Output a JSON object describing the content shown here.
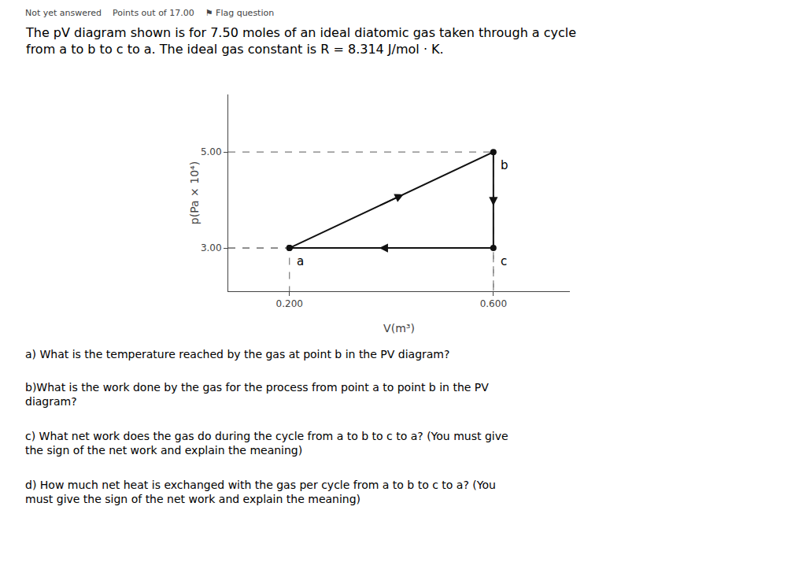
{
  "chart_data": {
    "type": "line",
    "subtitle": "Not yet answered    Points out of 17.00    ⚑ Flag question",
    "title": "The pV diagram shown is for 7.50 moles of an ideal diatomic gas taken through a cycle\nfrom a to b to c to a. The ideal gas constant is R = 8.314 J/mol · K.",
    "xlabel": "V(m³)",
    "ylabel": "p(Pa × 10⁴)",
    "x": [
      0.2,
      0.6,
      0.6,
      0.2
    ],
    "values": [
      3.0,
      5.0,
      3.0,
      3.0
    ],
    "color": "#111111",
    "marker": "circle",
    "line_style": "solid",
    "xlim": [
      0.08,
      0.75
    ],
    "ylim": [
      2.1,
      6.2
    ],
    "xticks": [
      {
        "value": 0.2,
        "label": "0.200"
      },
      {
        "value": 0.6,
        "label": "0.600"
      }
    ],
    "yticks": [
      {
        "value": 3.0,
        "label": "3.00"
      },
      {
        "value": 5.0,
        "label": "5.00"
      }
    ],
    "grid": false,
    "annotations": [
      {
        "text": "a",
        "x": 0.2,
        "y": 3.0
      },
      {
        "text": "b",
        "x": 0.6,
        "y": 5.0
      },
      {
        "text": "c",
        "x": 0.6,
        "y": 3.0
      },
      {
        "text": "a) What is the temperature reached by the gas at point b in the PV diagram?"
      },
      {
        "text": "b)What is the work done by the gas for the process from point a to point b in the PV\ndiagram?"
      },
      {
        "text": "c) What net work does the gas do during the cycle from a to b to c to a? (You must give\nthe sign of the net work and explain the meaning)"
      },
      {
        "text": "d) How much net heat is exchanged with the gas per cycle from a to b to c to a? (You\nmust give the sign of the net work and explain the meaning)"
      }
    ]
  }
}
